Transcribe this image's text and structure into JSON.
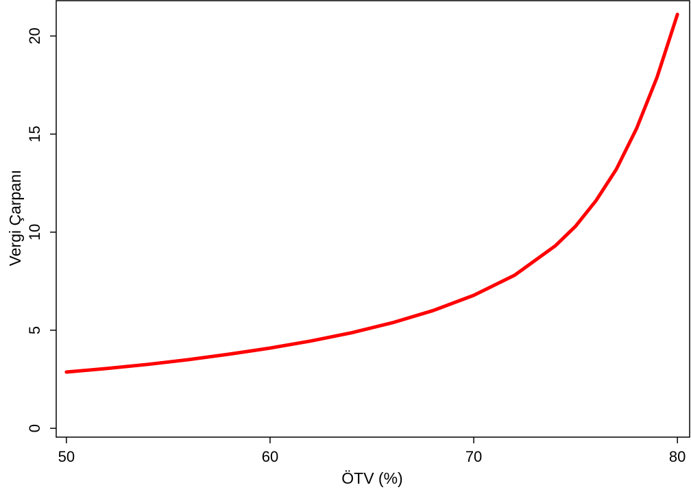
{
  "chart_data": {
    "type": "line",
    "xlabel": "ÖTV (%)",
    "ylabel": "Vergi Çarpanı",
    "xlim": [
      49.5,
      80.6
    ],
    "ylim": [
      -0.45,
      21.8
    ],
    "x_ticks": [
      50,
      60,
      70,
      80
    ],
    "y_ticks": [
      0,
      5,
      10,
      15,
      20
    ],
    "x_tick_labels": [
      "50",
      "60",
      "70",
      "80"
    ],
    "y_tick_labels": [
      "0",
      "5",
      "10",
      "15",
      "20"
    ],
    "grid": false,
    "legend": "none",
    "line_color": "#ff0000",
    "series": [
      {
        "x": [
          50,
          52,
          54,
          56,
          58,
          60,
          62,
          64,
          66,
          68,
          70,
          72,
          74,
          75,
          76,
          77,
          78,
          79,
          80
        ],
        "values": [
          2.87,
          3.05,
          3.26,
          3.5,
          3.78,
          4.09,
          4.45,
          4.87,
          5.38,
          6.0,
          6.78,
          7.8,
          9.3,
          10.3,
          11.6,
          13.2,
          15.3,
          17.9,
          21.1
        ]
      }
    ]
  }
}
